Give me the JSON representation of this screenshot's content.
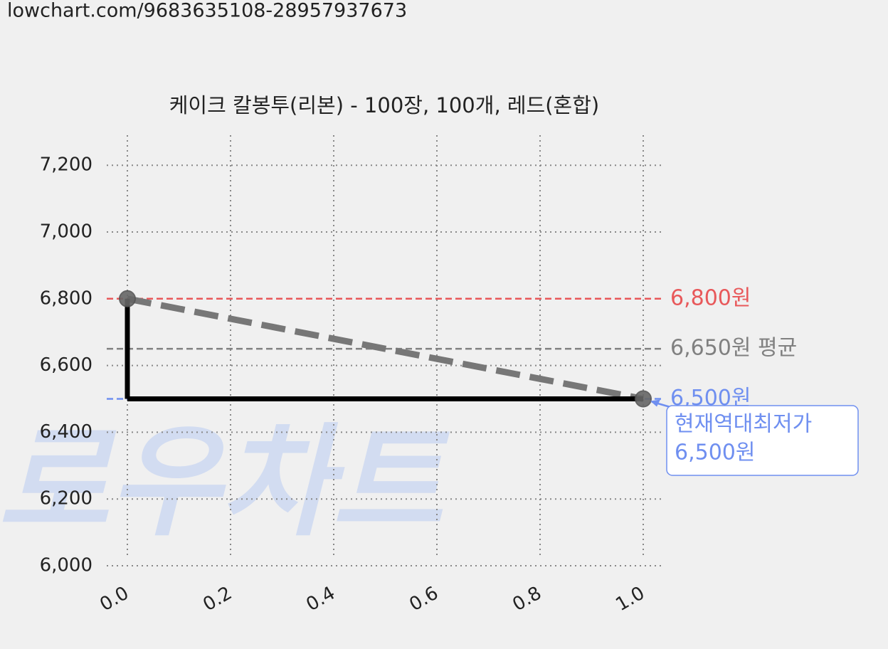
{
  "url": "lowchart.com/9683635108-28957937673",
  "watermark": "로우차트",
  "chart_data": {
    "type": "line",
    "title": "케이크 칼봉투(리본) - 100장, 100개, 레드(혼합)",
    "x": [
      0,
      1
    ],
    "series": [
      {
        "values": [
          6800,
          6500
        ]
      }
    ],
    "step_color": "#000000",
    "trend_color": "#777777",
    "xlim": [
      -0.04,
      1.04
    ],
    "ylim": [
      6000,
      7290
    ],
    "xticks": [
      {
        "value": 0,
        "label": "0.0"
      },
      0.2,
      0.4,
      0.6,
      0.8,
      {
        "value": 1,
        "label": "1.0"
      }
    ],
    "yticks": [
      {
        "value": 6000,
        "label": "6,000"
      },
      {
        "value": 6200,
        "label": "6,200"
      },
      {
        "value": 6400,
        "label": "6,400"
      },
      {
        "value": 6600,
        "label": "6,600"
      },
      {
        "value": 6800,
        "label": "6,800"
      },
      {
        "value": 7000,
        "label": "7,000"
      },
      {
        "value": 7200,
        "label": "7,200"
      }
    ],
    "grid": true,
    "reference_lines": [
      {
        "value": 6800,
        "label": "6,800원",
        "color": "#e8585a"
      },
      {
        "value": 6650,
        "label": "6,650원 평균",
        "color": "#808080"
      },
      {
        "value": 6500,
        "label": "6,500원",
        "color": "#6f8ff0"
      }
    ],
    "annotation": {
      "x": 1,
      "y": 6500,
      "lines": [
        "현재역대최저가",
        "6,500원"
      ],
      "color": "#6f8ff0"
    }
  }
}
